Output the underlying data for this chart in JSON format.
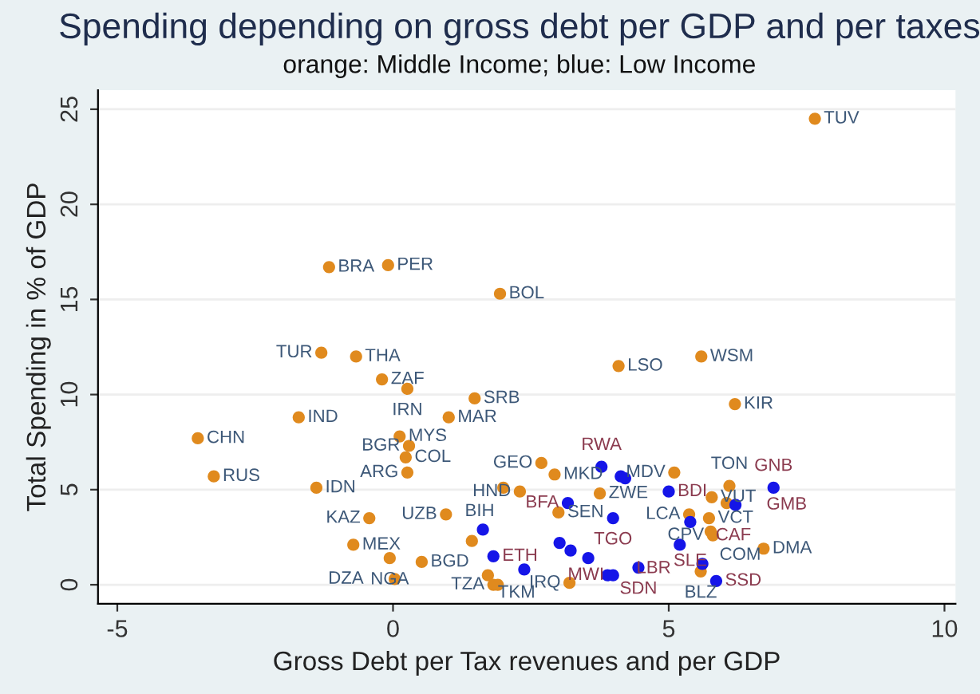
{
  "chart_data": {
    "type": "scatter",
    "title": "Spending depending on gross debt per GDP and per taxes",
    "subtitle": "orange: Middle Income; blue: Low Income",
    "xlabel": "Gross Debt per Tax revenues and per GDP",
    "ylabel": "Total Spending in % of GDP",
    "series": [
      {
        "color": "#e08a1e",
        "x": [
          7.65,
          -1.16,
          -0.09,
          1.94,
          4.09,
          5.59,
          6.2,
          -1.3,
          -0.67,
          -0.2,
          0.26,
          1.48,
          -1.71,
          1.01,
          -3.54,
          0.12,
          0.29,
          0.23,
          0.26,
          -3.25,
          -1.39,
          -0.43,
          -0.72,
          -0.06,
          0.52,
          0.03,
          2.69,
          2.93,
          5.1,
          6.1,
          5.78,
          6.05,
          5.37,
          5.73,
          5.76,
          5.8,
          6.72,
          5.58,
          3.2,
          3.75,
          2.0,
          2.3,
          3.0,
          0.96,
          1.72,
          1.82,
          1.9,
          1.43
        ],
        "values": [
          24.5,
          16.7,
          16.8,
          15.3,
          11.5,
          12.0,
          9.5,
          12.2,
          12.0,
          10.8,
          10.3,
          9.8,
          8.8,
          8.8,
          7.7,
          7.8,
          7.3,
          6.7,
          5.9,
          5.7,
          5.1,
          3.5,
          2.1,
          1.4,
          1.2,
          0.3,
          6.4,
          5.8,
          5.9,
          5.2,
          4.6,
          4.3,
          3.7,
          3.5,
          2.8,
          2.6,
          1.9,
          0.7,
          0.1,
          4.8,
          5.1,
          4.9,
          3.8,
          3.7,
          0.5,
          0.0,
          0.0,
          2.3
        ],
        "value_labels": [
          "TUV",
          "BRA",
          "PER",
          "BOL",
          "LSO",
          "WSM",
          "KIR",
          "TUR",
          "THA",
          "ZAF",
          "IRN",
          "SRB",
          "IND",
          "MAR",
          "CHN",
          "MYS",
          "BGR",
          "COL",
          "ARG",
          "RUS",
          "IDN",
          "KAZ",
          "MEX",
          "NGA",
          "BGD",
          "DZA",
          "GEO",
          "MKD",
          "MDV",
          "TON",
          "VUT",
          null,
          "LCA",
          "VCT",
          "COM",
          "CPV",
          "DMA",
          "BLZ",
          "IRQ",
          "ZWE",
          "BIH",
          "HND",
          "SEN",
          "UZB",
          null,
          "TZA",
          "TKM",
          null
        ]
      },
      {
        "color": "#1515e8",
        "x": [
          3.78,
          4.13,
          4.21,
          6.9,
          5.0,
          6.21,
          5.39,
          5.2,
          5.61,
          5.86,
          4.45,
          3.99,
          3.17,
          1.63,
          1.82,
          2.38,
          3.02,
          3.22,
          3.54,
          3.89,
          3.99
        ],
        "values": [
          6.2,
          5.7,
          5.6,
          5.1,
          4.9,
          4.2,
          3.3,
          2.1,
          1.1,
          0.2,
          0.9,
          3.5,
          4.3,
          2.9,
          1.5,
          0.8,
          2.2,
          1.8,
          1.4,
          0.5,
          0.5
        ],
        "value_labels": [
          "RWA",
          null,
          null,
          "GNB",
          "BDI",
          "GMB",
          "SLE",
          "LBR",
          "CAF",
          "SSD",
          "SDN",
          "TGO",
          "BFA",
          null,
          "ETH",
          null,
          null,
          null,
          null,
          null,
          "MWI"
        ]
      }
    ],
    "xlim": [
      -5.35,
      10.2
    ],
    "ylim": [
      -1,
      26
    ],
    "xticks": [
      -5,
      0,
      5,
      10
    ],
    "yticks": [
      0,
      5,
      10,
      15,
      20,
      25
    ],
    "grid": "y",
    "marker": "circle",
    "legend": false
  }
}
